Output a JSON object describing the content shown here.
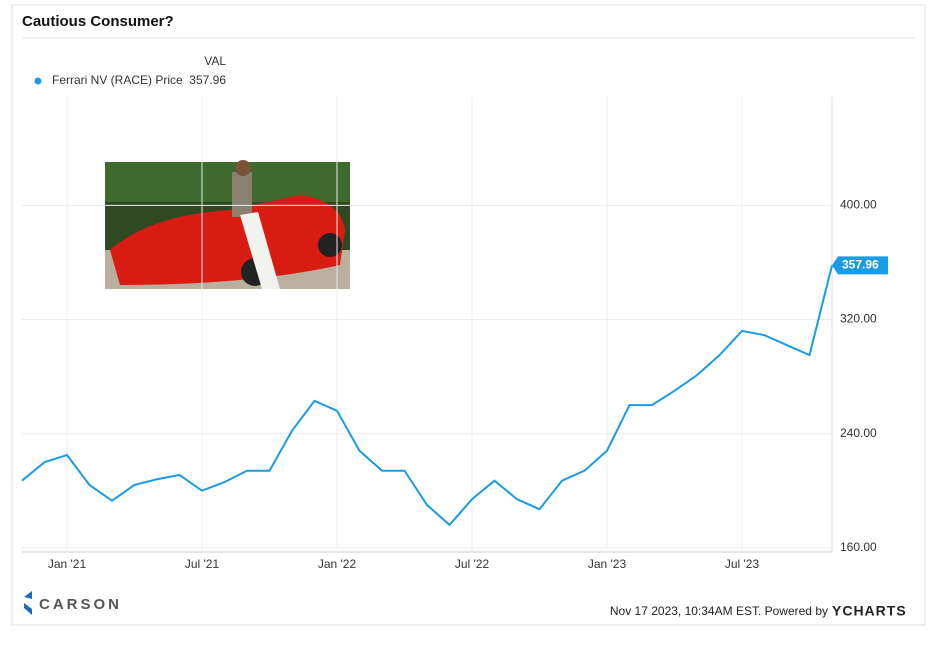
{
  "chart_data": {
    "type": "line",
    "title": "Cautious Consumer?",
    "legend_header": "VAL",
    "x": [
      "2020-11",
      "2020-12",
      "2021-01",
      "2021-02",
      "2021-03",
      "2021-04",
      "2021-05",
      "2021-06",
      "2021-07",
      "2021-08",
      "2021-09",
      "2021-10",
      "2021-11",
      "2021-12",
      "2022-01",
      "2022-02",
      "2022-03",
      "2022-04",
      "2022-05",
      "2022-06",
      "2022-07",
      "2022-08",
      "2022-09",
      "2022-10",
      "2022-11",
      "2022-12",
      "2023-01",
      "2023-02",
      "2023-03",
      "2023-04",
      "2023-05",
      "2023-06",
      "2023-07",
      "2023-08",
      "2023-09",
      "2023-10",
      "2023-11"
    ],
    "series": [
      {
        "name": "Ferrari NV (RACE) Price",
        "color": "#1a9be6",
        "values": [
          207,
          220,
          225,
          204,
          193,
          204,
          208,
          211,
          200,
          206,
          214,
          214,
          242,
          263,
          256,
          228,
          214,
          214,
          190,
          176,
          194,
          207,
          194,
          187,
          207,
          214,
          228,
          260,
          260,
          270,
          281,
          295,
          312,
          309,
          302,
          295,
          357.96
        ]
      }
    ],
    "xlim": [
      "2020-11",
      "2023-11"
    ],
    "xticks": [
      {
        "value": "2021-01",
        "label": "Jan '21"
      },
      {
        "value": "2021-07",
        "label": "Jul '21"
      },
      {
        "value": "2022-01",
        "label": "Jan '22"
      },
      {
        "value": "2022-07",
        "label": "Jul '22"
      },
      {
        "value": "2023-01",
        "label": "Jan '23"
      },
      {
        "value": "2023-07",
        "label": "Jul '23"
      }
    ],
    "ylim": [
      157,
      476
    ],
    "yticks": [
      {
        "value": 160,
        "label": "160.00"
      },
      {
        "value": 240,
        "label": "240.00"
      },
      {
        "value": 320,
        "label": "320.00"
      },
      {
        "value": 400,
        "label": "400.00"
      }
    ],
    "grid": true,
    "logo_text": "CARSON",
    "footer": "Nov 17 2023, 10:34AM EST. Powered by",
    "brand": "YCHARTS"
  }
}
